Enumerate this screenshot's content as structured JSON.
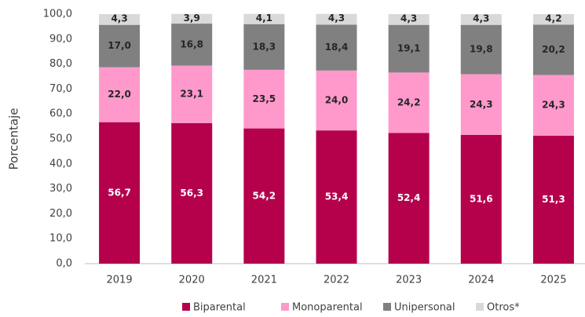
{
  "chart_data": {
    "type": "stacked_bar",
    "y_label": "Porcentaje",
    "categories": [
      "2019",
      "2020",
      "2021",
      "2022",
      "2023",
      "2024",
      "2025"
    ],
    "ylim": [
      0,
      100
    ],
    "yticks": [
      {
        "value": 0,
        "label": "0,0"
      },
      {
        "value": 10,
        "label": "10,0"
      },
      {
        "value": 20,
        "label": "20,0"
      },
      {
        "value": 30,
        "label": "30,0"
      },
      {
        "value": 40,
        "label": "40,0"
      },
      {
        "value": 50,
        "label": "50,0"
      },
      {
        "value": 60,
        "label": "60,0"
      },
      {
        "value": 70,
        "label": "70,0"
      },
      {
        "value": 80,
        "label": "80,0"
      },
      {
        "value": 90,
        "label": "90,0"
      },
      {
        "value": 100,
        "label": "100,0"
      }
    ],
    "grid": false,
    "legend": "bottom",
    "series": [
      {
        "name": "Biparental",
        "color": "#b5004b",
        "values": [
          56.7,
          56.3,
          54.2,
          53.4,
          52.4,
          51.6,
          51.3
        ],
        "value_labels": [
          "56,7",
          "56,3",
          "54,2",
          "53,4",
          "52,4",
          "51,6",
          "51,3"
        ]
      },
      {
        "name": "Monoparental",
        "color": "#ff99cc",
        "values": [
          22.0,
          23.1,
          23.5,
          24.0,
          24.2,
          24.3,
          24.3
        ],
        "value_labels": [
          "22,0",
          "23,1",
          "23,5",
          "24,0",
          "24,2",
          "24,3",
          "24,3"
        ]
      },
      {
        "name": "Unipersonal",
        "color": "#808080",
        "values": [
          17.0,
          16.8,
          18.3,
          18.4,
          19.1,
          19.8,
          20.2
        ],
        "value_labels": [
          "17,0",
          "16,8",
          "18,3",
          "18,4",
          "19,1",
          "19,8",
          "20,2"
        ]
      },
      {
        "name": "Otros*",
        "color": "#d9d9d9",
        "values": [
          4.3,
          3.9,
          4.1,
          4.3,
          4.3,
          4.3,
          4.2
        ],
        "value_labels": [
          "4,3",
          "3,9",
          "4,1",
          "4,3",
          "4,3",
          "4,3",
          "4,2"
        ]
      }
    ]
  }
}
